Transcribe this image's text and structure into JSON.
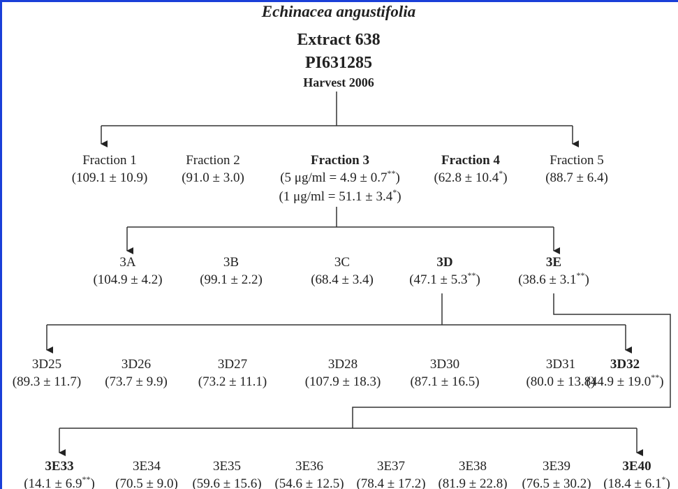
{
  "header": {
    "species": "Echinacea angustifolia",
    "extract": "Extract 638",
    "accession": "PI631285",
    "harvest": "Harvest 2006"
  },
  "levels": [
    {
      "nodes": [
        {
          "name": "Fraction 1",
          "lines": [
            {
              "pre": "(109.1 ± 10.9)"
            }
          ]
        },
        {
          "name": "Fraction 2",
          "lines": [
            {
              "pre": "(91.0 ± 3.0)"
            }
          ]
        },
        {
          "name": "Fraction 3",
          "bold": true,
          "lines": [
            {
              "pre": "(5 μg/ml = 4.9 ± 0.7",
              "sup": "**",
              "post": ")"
            },
            {
              "pre": "(1 μg/ml = 51.1 ± 3.4",
              "sup": "*",
              "post": ")"
            }
          ]
        },
        {
          "name": "Fraction 4",
          "bold": true,
          "lines": [
            {
              "pre": "(62.8 ± 10.4",
              "sup": "*",
              "post": ")"
            }
          ]
        },
        {
          "name": "Fraction 5",
          "lines": [
            {
              "pre": "(88.7 ± 6.4)"
            }
          ]
        }
      ]
    },
    {
      "nodes": [
        {
          "name": "3A",
          "lines": [
            {
              "pre": "(104.9 ± 4.2)"
            }
          ]
        },
        {
          "name": "3B",
          "lines": [
            {
              "pre": "(99.1 ± 2.2)"
            }
          ]
        },
        {
          "name": "3C",
          "lines": [
            {
              "pre": "(68.4 ± 3.4)"
            }
          ]
        },
        {
          "name": "3D",
          "bold": true,
          "lines": [
            {
              "pre": "(47.1 ± 5.3",
              "sup": "**",
              "post": ")"
            }
          ]
        },
        {
          "name": "3E",
          "bold": true,
          "lines": [
            {
              "pre": "(38.6 ± 3.1",
              "sup": "**",
              "post": ")"
            }
          ]
        }
      ]
    },
    {
      "nodes": [
        {
          "name": "3D25",
          "lines": [
            {
              "pre": "(89.3 ± 11.7)"
            }
          ]
        },
        {
          "name": "3D26",
          "lines": [
            {
              "pre": "(73.7 ± 9.9)"
            }
          ]
        },
        {
          "name": "3D27",
          "lines": [
            {
              "pre": "(73.2 ± 11.1)"
            }
          ]
        },
        {
          "name": "3D28",
          "lines": [
            {
              "pre": "(107.9 ± 18.3)"
            }
          ]
        },
        {
          "name": "3D30",
          "lines": [
            {
              "pre": "(87.1 ± 16.5)"
            }
          ]
        },
        {
          "name": "3D31",
          "lines": [
            {
              "pre": "(80.0 ± 13.8)"
            }
          ]
        },
        {
          "name": "3D32",
          "bold": true,
          "lines": [
            {
              "pre": "(44.9 ± 19.0",
              "sup": "**",
              "post": ")"
            }
          ]
        }
      ]
    },
    {
      "nodes": [
        {
          "name": "3E33",
          "bold": true,
          "lines": [
            {
              "pre": "(14.1 ± 6.9",
              "sup": "**",
              "post": ")"
            }
          ]
        },
        {
          "name": "3E34",
          "lines": [
            {
              "pre": "(70.5 ± 9.0)"
            }
          ]
        },
        {
          "name": "3E35",
          "lines": [
            {
              "pre": "(59.6 ± 15.6)"
            }
          ]
        },
        {
          "name": "3E36",
          "lines": [
            {
              "pre": "(54.6 ± 12.5)"
            }
          ]
        },
        {
          "name": "3E37",
          "lines": [
            {
              "pre": "(78.4 ± 17.2)"
            }
          ]
        },
        {
          "name": "3E38",
          "lines": [
            {
              "pre": "(81.9 ± 22.8)"
            }
          ]
        },
        {
          "name": "3E39",
          "lines": [
            {
              "pre": "(76.5 ± 30.2)"
            }
          ]
        },
        {
          "name": "3E40",
          "bold": true,
          "lines": [
            {
              "pre": "(18.4 ± 6.1",
              "sup": "*",
              "post": ")"
            }
          ]
        }
      ]
    }
  ]
}
